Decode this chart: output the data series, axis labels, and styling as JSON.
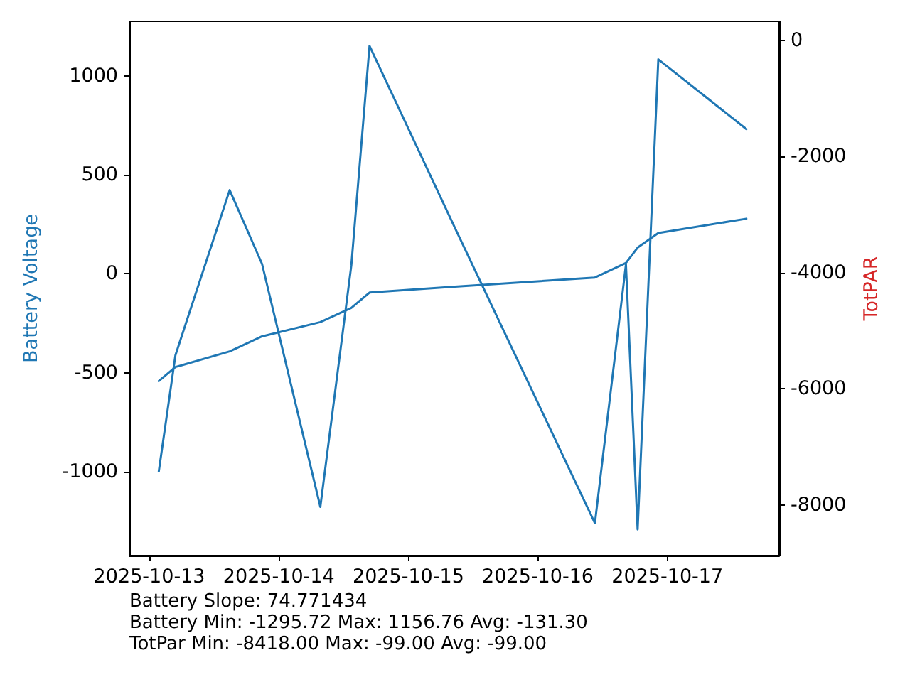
{
  "chart_data": {
    "type": "line",
    "ylabel": "Battery Voltage",
    "y2label": "TotPAR",
    "x": [
      "2025-10-13T01:45",
      "2025-10-13T04:50",
      "2025-10-13T14:53",
      "2025-10-13T20:53",
      "2025-10-14T07:41",
      "2025-10-14T13:26",
      "2025-10-14T16:48",
      "2025-10-15T08:38",
      "2025-10-16T10:34",
      "2025-10-16T16:19",
      "2025-10-16T18:29",
      "2025-10-16T22:19",
      "2025-10-17T14:38"
    ],
    "series": [
      {
        "color": "#1f77b4",
        "values": [
          -542,
          -471,
          -392,
          -316,
          -244,
          -172,
          -95,
          -65,
          -19,
          55,
          132,
          206,
          278
        ]
      },
      {
        "color": "#1f77b4",
        "axis": "y2",
        "values": [
          -7420,
          -5420,
          -2580,
          -3850,
          -8030,
          -3870,
          -99,
          -3230,
          -8310,
          -3860,
          -8418,
          -330,
          -1530
        ]
      }
    ],
    "xlim": [
      "2025-10-12T20:18",
      "2025-10-17T20:43"
    ],
    "xticks": [
      "2025-10-13",
      "2025-10-14",
      "2025-10-15",
      "2025-10-16",
      "2025-10-17"
    ],
    "ylim": [
      -1423,
      1275
    ],
    "yticks": [
      -1000,
      -500,
      0,
      500,
      1000
    ],
    "y2lim": [
      -8868,
      325
    ],
    "y2ticks": [
      -8000,
      -6000,
      -4000,
      -2000,
      0
    ],
    "annotations": [
      "Battery Slope: 74.771434",
      "Battery Min: -1295.72 Max: 1156.76 Avg: -131.30",
      "TotPar Min: -8418.00 Max: -99.00 Avg: -99.00"
    ],
    "grid": false,
    "marker": "none",
    "line_style": "solid"
  }
}
